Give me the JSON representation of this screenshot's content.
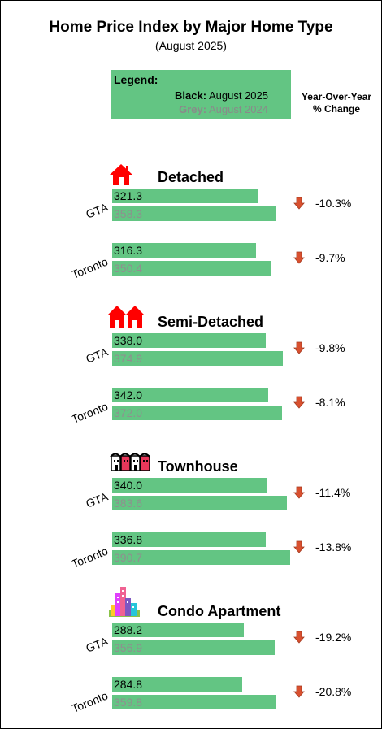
{
  "title": "Home Price Index by Major Home Type",
  "subtitle": "(August 2025)",
  "legend": {
    "title": "Legend:",
    "current_key": "Black:",
    "current_value": "August 2025",
    "previous_key": "Grey:",
    "previous_value": "August 2024"
  },
  "yoy_header": [
    "Year-Over-Year",
    "% Change"
  ],
  "colors": {
    "bar": "#63c583",
    "current_text": "#000000",
    "previous_text": "#8f8f8f",
    "arrow": "#d9502f"
  },
  "chart_data": {
    "type": "bar",
    "orientation": "horizontal",
    "series_names": [
      "August 2025",
      "August 2024"
    ],
    "sections": [
      {
        "name": "Detached",
        "icon": "house-icon",
        "rows": [
          {
            "region": "GTA",
            "current": "321.3",
            "previous": "358.3",
            "change": "-10.3%"
          },
          {
            "region": "Toronto",
            "current": "316.3",
            "previous": "350.4",
            "change": "-9.7%"
          }
        ]
      },
      {
        "name": "Semi-Detached",
        "icon": "semi-detached-icon",
        "rows": [
          {
            "region": "GTA",
            "current": "338.0",
            "previous": "374.9",
            "change": "-9.8%"
          },
          {
            "region": "Toronto",
            "current": "342.0",
            "previous": "372.0",
            "change": "-8.1%"
          }
        ]
      },
      {
        "name": "Townhouse",
        "icon": "townhouse-icon",
        "rows": [
          {
            "region": "GTA",
            "current": "340.0",
            "previous": "383.6",
            "change": "-11.4%"
          },
          {
            "region": "Toronto",
            "current": "336.8",
            "previous": "390.7",
            "change": "-13.8%"
          }
        ]
      },
      {
        "name": "Condo Apartment",
        "icon": "condo-icon",
        "rows": [
          {
            "region": "GTA",
            "current": "288.2",
            "previous": "356.9",
            "change": "-19.2%"
          },
          {
            "region": "Toronto",
            "current": "284.8",
            "previous": "359.8",
            "change": "-20.8%"
          }
        ]
      }
    ]
  }
}
